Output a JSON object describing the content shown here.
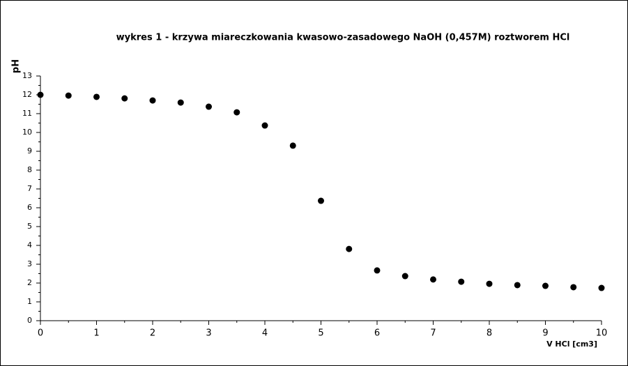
{
  "chart_data": {
    "type": "scatter",
    "title": "wykres 1 - krzywa miareczkowania kwasowo-zasadowego NaOH (0,457M) roztworem HCl",
    "x_label": "V HCl [cm3]",
    "y_label": "pH",
    "x": [
      0,
      0.5,
      1,
      1.5,
      2,
      2.5,
      3,
      3.5,
      4,
      4.5,
      5,
      5.5,
      6,
      6.5,
      7,
      7.5,
      8,
      8.5,
      9,
      9.5,
      10
    ],
    "series": [
      {
        "color": "#000000",
        "values": [
          12.0,
          11.96,
          11.89,
          11.81,
          11.7,
          11.59,
          11.37,
          11.07,
          10.37,
          9.3,
          6.37,
          3.81,
          2.67,
          2.37,
          2.19,
          2.07,
          1.96,
          1.89,
          1.85,
          1.78,
          1.74
        ]
      }
    ],
    "xlim": [
      0,
      10
    ],
    "ylim": [
      0,
      13
    ],
    "xticks": [
      0,
      1,
      2,
      3,
      4,
      5,
      6,
      7,
      8,
      9,
      10
    ],
    "yticks": [
      0,
      1,
      2,
      3,
      4,
      5,
      6,
      7,
      8,
      9,
      10,
      11,
      12,
      13
    ]
  }
}
